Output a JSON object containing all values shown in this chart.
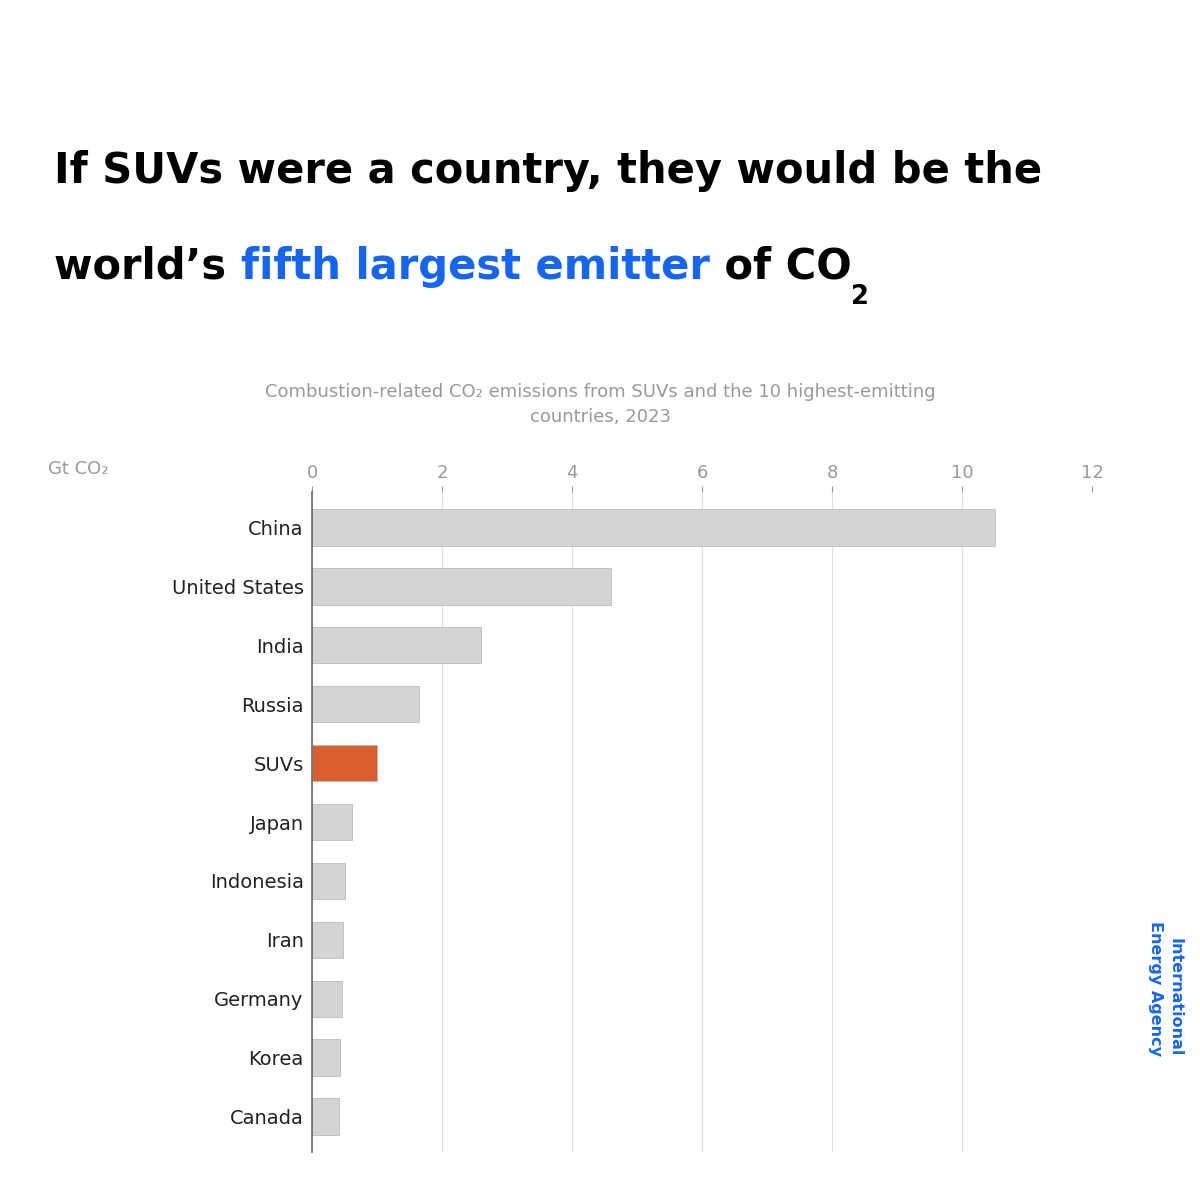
{
  "categories": [
    "China",
    "United States",
    "India",
    "Russia",
    "SUVs",
    "Japan",
    "Indonesia",
    "Iran",
    "Germany",
    "Korea",
    "Canada"
  ],
  "values": [
    10.5,
    4.6,
    2.6,
    1.65,
    1.0,
    0.62,
    0.5,
    0.47,
    0.46,
    0.43,
    0.41
  ],
  "bar_colors": [
    "#d4d4d4",
    "#d4d4d4",
    "#d4d4d4",
    "#d4d4d4",
    "#d95f30",
    "#d4d4d4",
    "#d4d4d4",
    "#d4d4d4",
    "#d4d4d4",
    "#d4d4d4",
    "#d4d4d4"
  ],
  "title_black_part1": "If SUVs were a country, they would be the",
  "title_black_part2": "world’s ",
  "title_blue_part": "fifth largest emitter",
  "title_black_part3": " of CO",
  "title_co2_sub": "2",
  "subtitle": "Combustion-related CO₂ emissions from SUVs and the 10 highest-emitting\ncountries, 2023",
  "gt_co2_label": "Gt CO₂",
  "watermark_line1": "International",
  "watermark_line2": "Energy Agency",
  "xlim": [
    0,
    12
  ],
  "xticks": [
    0,
    2,
    4,
    6,
    8,
    10,
    12
  ],
  "background_color": "#ffffff",
  "bar_edge_color": "#bbbbbb",
  "title_fontsize": 30,
  "subtitle_fontsize": 13,
  "label_fontsize": 14,
  "tick_fontsize": 13,
  "gtco2_fontsize": 13,
  "blue_color": "#1565f0",
  "watermark_color": "#1565f0",
  "axis_color": "#999999",
  "text_color": "#222222",
  "grid_color": "#e0e0e0"
}
